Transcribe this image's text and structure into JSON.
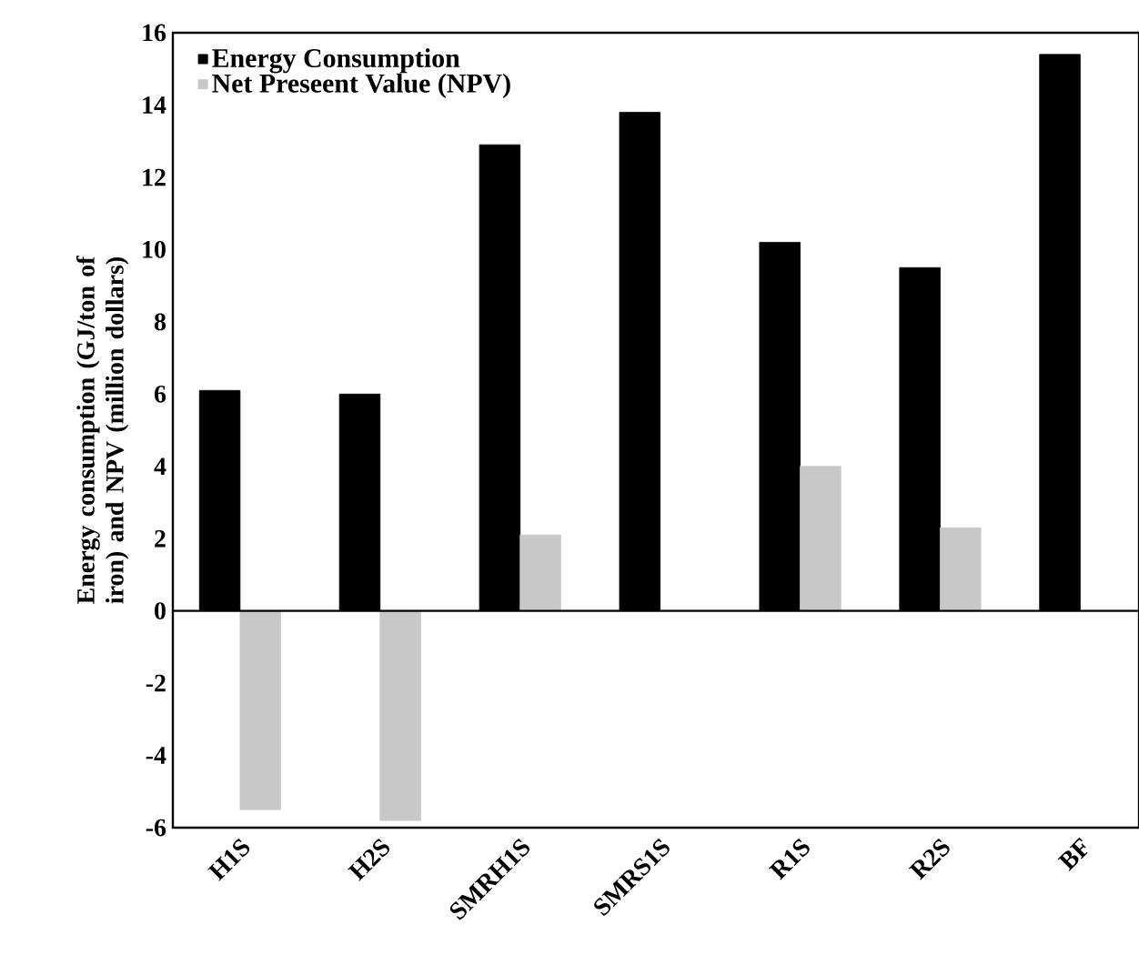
{
  "chart_data": {
    "type": "bar",
    "ylabel": "Energy consumption (GJ/ton of iron) and NPV (million dollars)",
    "categories": [
      "H1S",
      "H2S",
      "SMRH1S",
      "SMRS1S",
      "R1S",
      "R2S",
      "BF"
    ],
    "series": [
      {
        "name": "Energy Consumption",
        "color": "#000000",
        "values": [
          6.1,
          6.0,
          12.9,
          13.8,
          10.2,
          9.5,
          15.4
        ]
      },
      {
        "name": "Net Preseent Value (NPV)",
        "color": "#c8c8c8",
        "values": [
          -5.5,
          -5.8,
          2.1,
          null,
          4.0,
          2.3,
          null
        ]
      }
    ],
    "ylim": [
      -6,
      16
    ],
    "yticks": [
      -6,
      -4,
      -2,
      0,
      2,
      4,
      6,
      8,
      10,
      12,
      14,
      16
    ],
    "legend": "top left",
    "grid": false,
    "ref_lines": [
      {
        "axis": "y",
        "value": 0,
        "color": "#000000"
      }
    ]
  }
}
